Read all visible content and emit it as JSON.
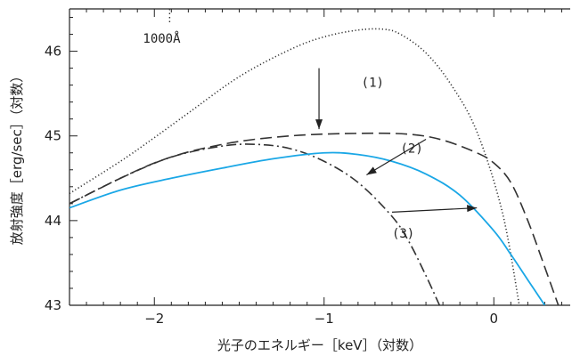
{
  "chart_data": {
    "type": "line",
    "xlabel": "光子のエネルギー［keV］（対数）",
    "ylabel": "放射強度［erg/sec］（対数）",
    "xlim": [
      -2.5,
      0.45
    ],
    "ylim": [
      43,
      46.5
    ],
    "x_ticks": [
      -2,
      -1,
      0
    ],
    "x_tick_labels": [
      "−2",
      "−1",
      "0"
    ],
    "y_ticks": [
      43,
      44,
      45,
      46
    ],
    "y_tick_labels": [
      "43",
      "44",
      "45",
      "46"
    ],
    "reference_line": {
      "x": -1.91,
      "label": "1000Å"
    },
    "series": [
      {
        "line_style": "dotted",
        "color": "#333333",
        "x": [
          -2.5,
          -2.2,
          -2.0,
          -1.8,
          -1.5,
          -1.2,
          -1.0,
          -0.8,
          -0.65,
          -0.55,
          -0.4,
          -0.25,
          -0.1,
          0.05,
          0.15
        ],
        "y": [
          44.32,
          44.7,
          44.98,
          45.27,
          45.7,
          46.02,
          46.17,
          46.25,
          46.26,
          46.2,
          45.98,
          45.6,
          45.05,
          44.1,
          43.0
        ]
      },
      {
        "line_style": "dashed",
        "color": "#333333",
        "x": [
          -2.5,
          -2.0,
          -1.6,
          -1.2,
          -0.8,
          -0.5,
          -0.3,
          -0.1,
          0.0,
          0.1,
          0.2,
          0.3,
          0.38
        ],
        "y": [
          44.2,
          44.68,
          44.9,
          45.0,
          45.03,
          45.02,
          44.95,
          44.8,
          44.68,
          44.45,
          44.0,
          43.45,
          43.0
        ]
      },
      {
        "line_style": "dash-dot",
        "color": "#333333",
        "x": [
          -2.5,
          -2.2,
          -1.9,
          -1.6,
          -1.4,
          -1.2,
          -1.0,
          -0.8,
          -0.6,
          -0.5,
          -0.4,
          -0.32
        ],
        "y": [
          44.2,
          44.5,
          44.75,
          44.88,
          44.9,
          44.85,
          44.7,
          44.45,
          44.05,
          43.75,
          43.35,
          43.0
        ]
      },
      {
        "line_style": "solid",
        "color": "#1aa7e6",
        "x": [
          -2.5,
          -2.2,
          -1.9,
          -1.6,
          -1.3,
          -1.0,
          -0.8,
          -0.6,
          -0.4,
          -0.2,
          0.0,
          0.1,
          0.2,
          0.3
        ],
        "y": [
          44.15,
          44.36,
          44.5,
          44.62,
          44.73,
          44.8,
          44.78,
          44.7,
          44.55,
          44.3,
          43.88,
          43.6,
          43.3,
          43.0
        ]
      }
    ],
    "annotations": [
      {
        "label": "(1)",
        "x": -0.78,
        "y": 45.58
      },
      {
        "label": "(2)",
        "x": -0.55,
        "y": 44.8
      },
      {
        "label": "(3)",
        "x": -0.6,
        "y": 43.8
      }
    ],
    "arrows": [
      {
        "from": [
          -1.03,
          45.8
        ],
        "to": [
          -1.03,
          45.08
        ]
      },
      {
        "from": [
          -0.4,
          44.96
        ],
        "to": [
          -0.75,
          44.54
        ]
      },
      {
        "from": [
          -0.6,
          44.1
        ],
        "to": [
          -0.1,
          44.15
        ]
      }
    ],
    "grid": false,
    "legend": "none"
  }
}
